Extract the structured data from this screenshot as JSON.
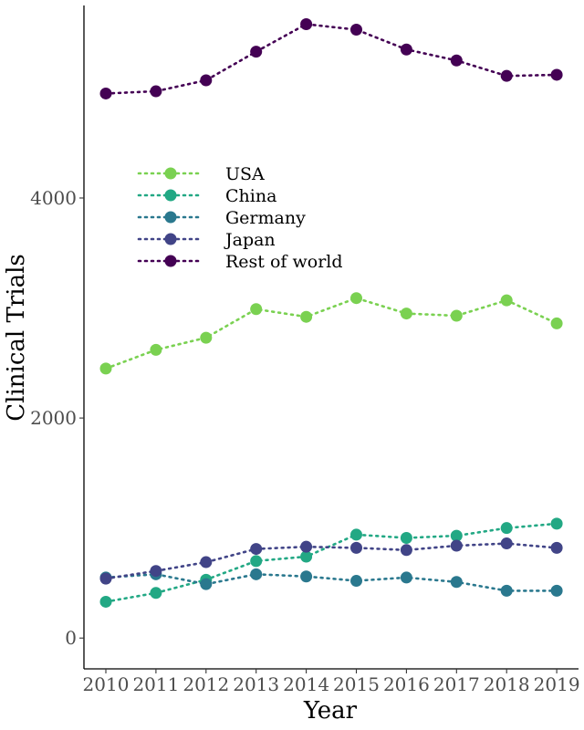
{
  "chart_data": {
    "type": "line",
    "title": "",
    "xlabel": "Year",
    "ylabel": "Clinical Trials",
    "categories": [
      "2010",
      "2011",
      "2012",
      "2013",
      "2014",
      "2015",
      "2016",
      "2017",
      "2018",
      "2019"
    ],
    "y_ticks": [
      "0",
      "2000",
      "4000"
    ],
    "ylim": [
      -280,
      5750
    ],
    "grid": false,
    "legend_position": "top-left",
    "series": [
      {
        "name": "USA",
        "color": "#7AD151",
        "values": [
          2450,
          2620,
          2730,
          2990,
          2920,
          3090,
          2950,
          2930,
          3070,
          2860
        ]
      },
      {
        "name": "China",
        "color": "#22A884",
        "values": [
          330,
          410,
          530,
          700,
          740,
          940,
          910,
          930,
          1000,
          1040
        ]
      },
      {
        "name": "Germany",
        "color": "#2A788E",
        "values": [
          550,
          580,
          490,
          580,
          560,
          520,
          550,
          510,
          430,
          430
        ]
      },
      {
        "name": "Japan",
        "color": "#414487",
        "values": [
          540,
          610,
          690,
          810,
          830,
          820,
          800,
          840,
          860,
          820
        ]
      },
      {
        "name": "Rest of world",
        "color": "#440154",
        "values": [
          4950,
          4970,
          5070,
          5330,
          5580,
          5530,
          5350,
          5250,
          5110,
          5120
        ]
      }
    ]
  }
}
